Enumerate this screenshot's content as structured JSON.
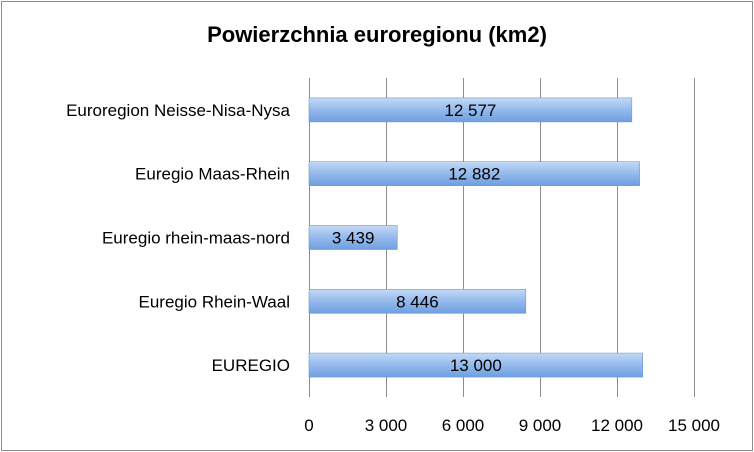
{
  "chart_data": {
    "type": "bar",
    "orientation": "horizontal",
    "title": "Powierzchnia euroregionu (km2)",
    "categories": [
      "Euroregion Neisse-Nisa-Nysa",
      "Euregio Maas-Rhein",
      "Euregio rhein-maas-nord",
      "Euregio Rhein-Waal",
      "EUREGIO"
    ],
    "values": [
      12577,
      12882,
      3439,
      8446,
      13000
    ],
    "data_labels": [
      "12 577",
      "12 882",
      "3 439",
      "8 446",
      "13 000"
    ],
    "xlim": [
      0,
      15000
    ],
    "x_ticks": [
      0,
      3000,
      6000,
      9000,
      12000,
      15000
    ],
    "x_tick_labels": [
      "0",
      "3 000",
      "6 000",
      "9 000",
      "12 000",
      "15 000"
    ],
    "xlabel": "",
    "ylabel": "",
    "grid": "vertical",
    "legend": "none",
    "bar_color": "#8fb6ea"
  }
}
